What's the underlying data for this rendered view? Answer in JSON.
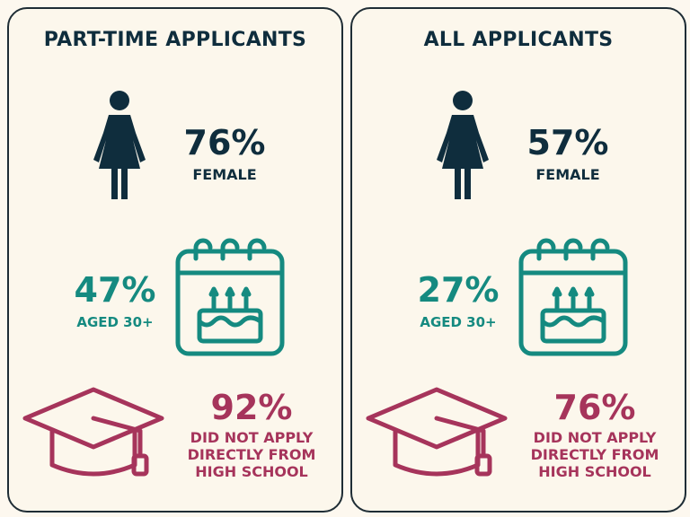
{
  "colors": {
    "navy": "#0f2d3d",
    "teal": "#158a80",
    "maroon": "#a6345b",
    "background": "#fcf7ec"
  },
  "panels": [
    {
      "title": "PART-TIME APPLICANTS",
      "female_pct": "76%",
      "female_label": "FEMALE",
      "age_pct": "47%",
      "age_label": "AGED 30+",
      "hs_pct": "92%",
      "hs_label_line1": "DID NOT APPLY",
      "hs_label_line2": "DIRECTLY FROM",
      "hs_label_line3": "HIGH SCHOOL",
      "icons": [
        "female-icon",
        "birthday-calendar-icon",
        "graduation-cap-icon"
      ]
    },
    {
      "title": "ALL APPLICANTS",
      "female_pct": "57%",
      "female_label": "FEMALE",
      "age_pct": "27%",
      "age_label": "AGED 30+",
      "hs_pct": "76%",
      "hs_label_line1": "DID NOT APPLY",
      "hs_label_line2": "DIRECTLY FROM",
      "hs_label_line3": "HIGH SCHOOL",
      "icons": [
        "female-icon",
        "birthday-calendar-icon",
        "graduation-cap-icon"
      ]
    }
  ]
}
